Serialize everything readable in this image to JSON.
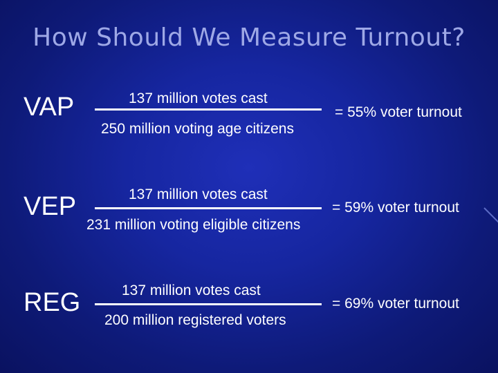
{
  "title": "How Should We Measure Turnout?",
  "rows": [
    {
      "label": "VAP",
      "numerator": "137 million votes cast",
      "denominator": "250 million voting age citizens",
      "result": "= 55% voter turnout"
    },
    {
      "label": "VEP",
      "numerator": "137 million votes cast",
      "denominator": "231 million voting eligible citizens",
      "result": "= 59% voter turnout"
    },
    {
      "label": "REG",
      "numerator": "137 million votes cast",
      "denominator": "200 million registered voters",
      "result": "= 69% voter turnout"
    }
  ]
}
